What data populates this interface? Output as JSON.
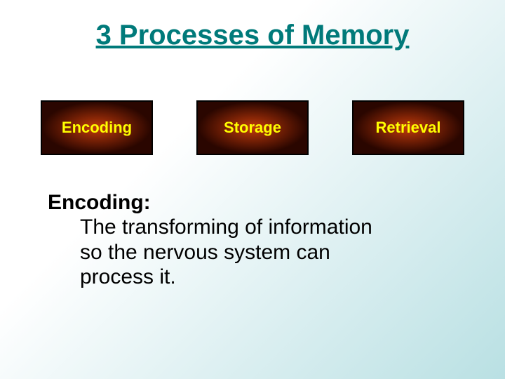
{
  "slide": {
    "title": "3 Processes of Memory",
    "title_color": "#007a7a",
    "title_fontsize": 40,
    "background_gradient": {
      "from": "#ffffff",
      "to": "#b9e0e3"
    }
  },
  "boxes": [
    {
      "label": "Encoding",
      "text_color": "#ffff00",
      "center_color": "#c23a0a",
      "edge_color": "#2a0600",
      "border_color": "#000000"
    },
    {
      "label": "Storage",
      "text_color": "#ffff00",
      "center_color": "#c23a0a",
      "edge_color": "#2a0600",
      "border_color": "#000000"
    },
    {
      "label": "Retrieval",
      "text_color": "#ffff00",
      "center_color": "#c23a0a",
      "edge_color": "#2a0600",
      "border_color": "#000000"
    }
  ],
  "definition": {
    "term": "Encoding:",
    "body": "The transforming of information so the nervous system can process it.",
    "fontsize": 30,
    "color": "#000000"
  }
}
